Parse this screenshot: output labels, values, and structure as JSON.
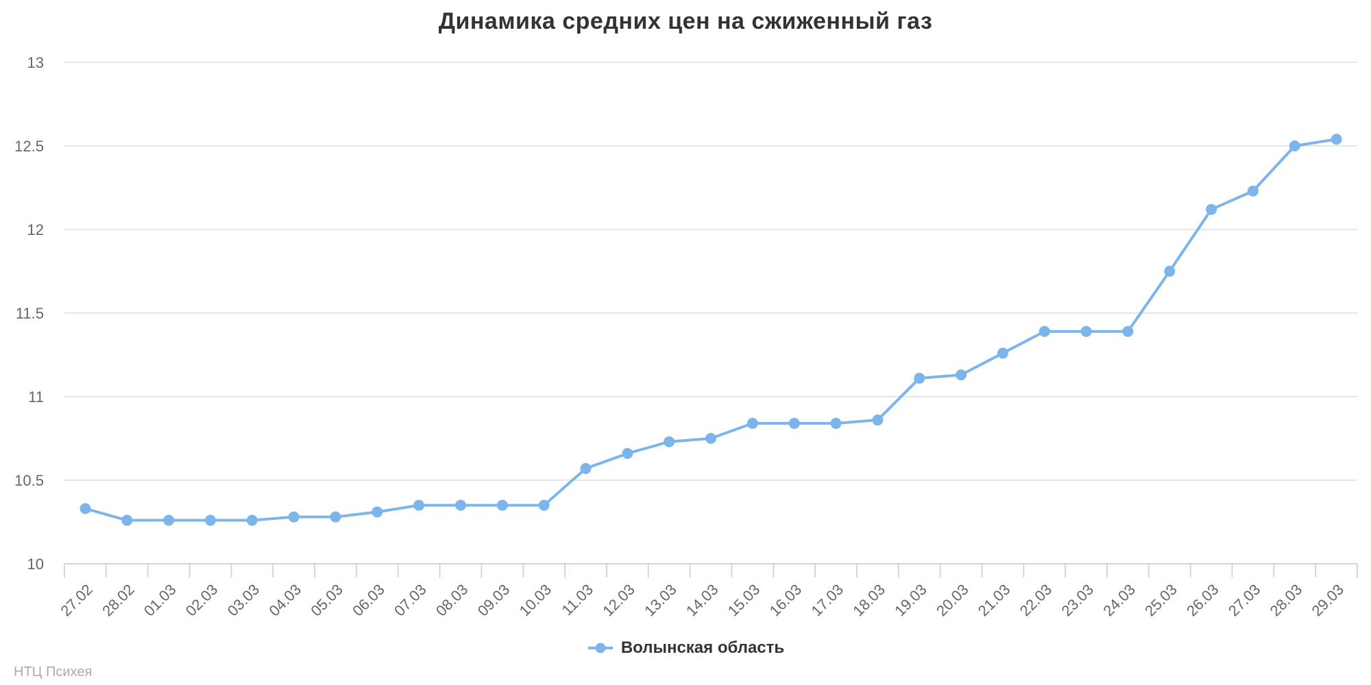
{
  "title": "Динамика средних цен на сжиженный газ",
  "watermark": "НТЦ Психея",
  "legend": {
    "items": [
      {
        "label": "Волынская область",
        "color": "#7cb5ec"
      }
    ]
  },
  "chart_data": {
    "type": "line",
    "title": "Динамика средних цен на сжиженный газ",
    "categories": [
      "27.02",
      "28.02",
      "01.03",
      "02.03",
      "03.03",
      "04.03",
      "05.03",
      "06.03",
      "07.03",
      "08.03",
      "09.03",
      "10.03",
      "11.03",
      "12.03",
      "13.03",
      "14.03",
      "15.03",
      "16.03",
      "17.03",
      "18.03",
      "19.03",
      "20.03",
      "21.03",
      "22.03",
      "23.03",
      "24.03",
      "25.03",
      "26.03",
      "27.03",
      "28.03",
      "29.03"
    ],
    "series": [
      {
        "name": "Волынская область",
        "color": "#7cb5ec",
        "values": [
          10.33,
          10.26,
          10.26,
          10.26,
          10.26,
          10.28,
          10.28,
          10.31,
          10.35,
          10.35,
          10.35,
          10.35,
          10.57,
          10.66,
          10.73,
          10.75,
          10.84,
          10.84,
          10.84,
          10.86,
          11.11,
          11.13,
          11.26,
          11.39,
          11.39,
          11.39,
          11.75,
          12.12,
          12.23,
          12.5,
          12.54
        ]
      }
    ],
    "xlabel": "",
    "ylabel": "",
    "ylim": [
      10,
      13
    ],
    "yticks": [
      10,
      10.5,
      11,
      11.5,
      12,
      12.5,
      13
    ],
    "grid": true,
    "legend_position": "bottom-center",
    "x_label_rotation": -45,
    "colors": {
      "series": "#7cb5ec",
      "grid": "#e6e6e6",
      "axis": "#ccd6eb",
      "tick_label": "#666666",
      "title": "#333333",
      "legend_text": "#333333",
      "watermark": "#ababab",
      "background": "#ffffff"
    }
  }
}
